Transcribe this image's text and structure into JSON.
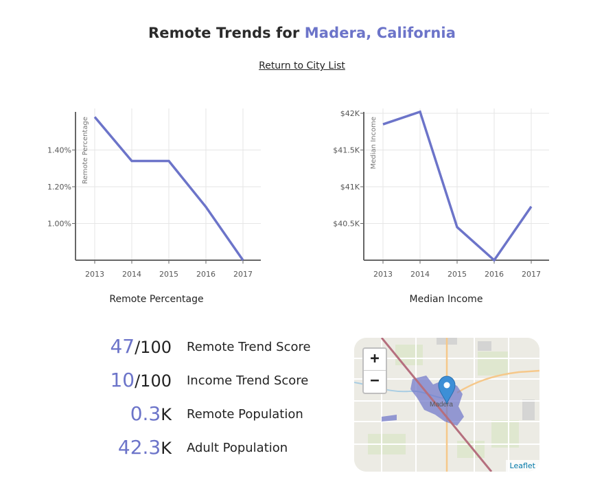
{
  "header": {
    "title_prefix": "Remote Trends for",
    "city": "Madera, California",
    "return_link": "Return to City List"
  },
  "colors": {
    "accent": "#6c74c9",
    "axis": "#666666",
    "grid": "#e6e6e6"
  },
  "chart_data": [
    {
      "type": "line",
      "title": "Remote Percentage",
      "ylabel": "Remote Percentage",
      "categories": [
        "2013",
        "2014",
        "2015",
        "2016",
        "2017"
      ],
      "values": [
        1.58,
        1.34,
        1.34,
        1.09,
        0.8
      ],
      "ylim": [
        0.8,
        1.6
      ],
      "yticks": [
        1.0,
        1.2,
        1.4
      ],
      "ytick_labels": [
        "1.00%",
        "1.20%",
        "1.40%"
      ]
    },
    {
      "type": "line",
      "title": "Median Income",
      "ylabel": "Median Income",
      "categories": [
        "2013",
        "2014",
        "2015",
        "2016",
        "2017"
      ],
      "values": [
        41850,
        42020,
        40450,
        40000,
        40730
      ],
      "ylim": [
        40000,
        42000
      ],
      "yticks": [
        40500,
        41000,
        41500,
        42000
      ],
      "ytick_labels": [
        "$40.5K",
        "$41K",
        "$41.5K",
        "$42K"
      ]
    }
  ],
  "stats": [
    {
      "big": "47",
      "small": "/100",
      "label": "Remote Trend Score"
    },
    {
      "big": "10",
      "small": "/100",
      "label": "Income Trend Score"
    },
    {
      "big": "0.3",
      "small": "K",
      "label": "Remote Population"
    },
    {
      "big": "42.3",
      "small": "K",
      "label": "Adult Population"
    }
  ],
  "map": {
    "zoom_in": "+",
    "zoom_out": "−",
    "place_label": "Madera",
    "attribution": "Leaflet"
  }
}
